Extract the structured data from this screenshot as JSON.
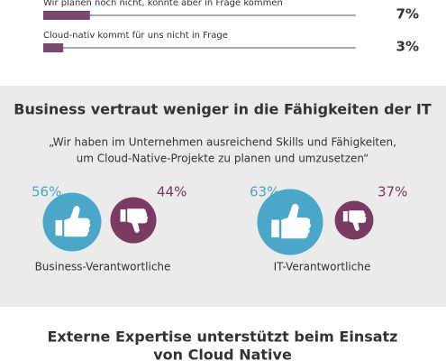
{
  "top_bars": [
    {
      "label": "Wir planen noch nicht, könnte aber in Frage kommen",
      "value": 7,
      "value_label": "7%"
    },
    {
      "label": "Cloud-nativ kommt für uns nicht in Frage",
      "value": 3,
      "value_label": "3%"
    }
  ],
  "section": {
    "title": "Business vertraut weniger in die Fähigkeiten der IT",
    "quote": [
      "„Wir haben im Unternehmen ausreichend Skills und Fähigkeiten,",
      "um Cloud-Native-Projekte zu planen und umzusetzen“"
    ],
    "groups": [
      {
        "label": "Business-Verantwortliche",
        "yes": 56,
        "yes_label": "56%",
        "no": 44,
        "no_label": "44%"
      },
      {
        "label": "IT-Verantwortliche",
        "yes": 63,
        "yes_label": "63%",
        "no": 37,
        "no_label": "37%"
      }
    ]
  },
  "next_section": {
    "title": [
      "Externe Expertise unterstützt beim Einsatz",
      "von Cloud Native"
    ]
  }
}
